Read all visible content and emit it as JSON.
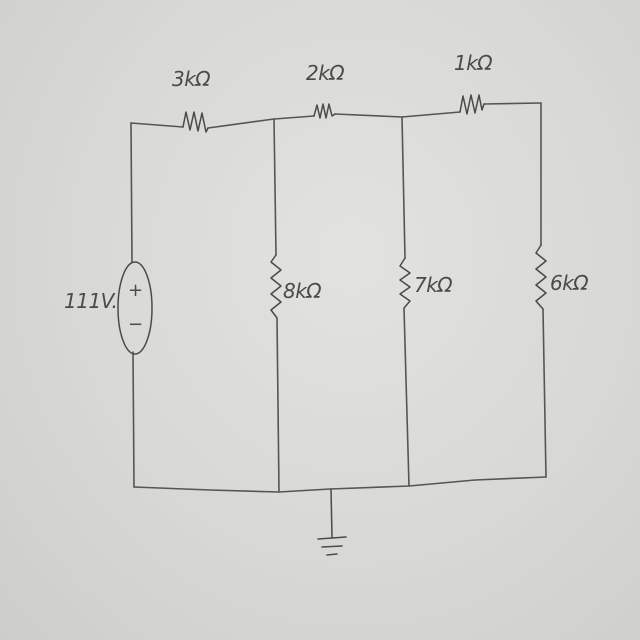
{
  "source": {
    "label": "111V.",
    "plus": "+",
    "minus": "−"
  },
  "resistors": [
    {
      "id": "r-top-1",
      "label": "3kΩ"
    },
    {
      "id": "r-top-2",
      "label": "2kΩ"
    },
    {
      "id": "r-top-3",
      "label": "1kΩ"
    },
    {
      "id": "r-shunt-1",
      "label": "8kΩ"
    },
    {
      "id": "r-shunt-2",
      "label": "7kΩ"
    },
    {
      "id": "r-shunt-3",
      "label": "6kΩ"
    }
  ],
  "ground": {
    "icon": "ground-icon"
  }
}
